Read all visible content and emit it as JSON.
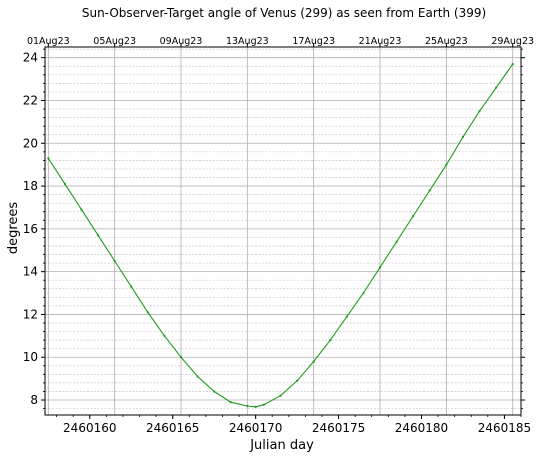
{
  "chart_data": {
    "type": "line",
    "title": "Sun-Observer-Target angle of Venus (299) as seen from Earth (399)",
    "xlabel": "Julian day",
    "ylabel": "degrees",
    "xlim": [
      2460157.3,
      2460186.0
    ],
    "ylim": [
      7.3,
      24.5
    ],
    "grid": true,
    "x_ticks": [
      2460160,
      2460165,
      2460170,
      2460175,
      2460180,
      2460185
    ],
    "x_tick_labels": [
      "2460160",
      "2460165",
      "2460170",
      "2460175",
      "2460180",
      "2460185"
    ],
    "y_ticks": [
      8,
      10,
      12,
      14,
      16,
      18,
      20,
      22,
      24
    ],
    "y_tick_labels": [
      "8",
      "10",
      "12",
      "14",
      "16",
      "18",
      "20",
      "22",
      "24"
    ],
    "top_axis": {
      "ticks": [
        2460157.5,
        2460161.5,
        2460165.5,
        2460169.5,
        2460173.5,
        2460177.5,
        2460181.5,
        2460185.5
      ],
      "labels": [
        "01Aug23",
        "05Aug23",
        "09Aug23",
        "13Aug23",
        "17Aug23",
        "21Aug23",
        "25Aug23",
        "29Aug23"
      ]
    },
    "series": [
      {
        "color": "#1f9a1f",
        "x": [
          2460157.5,
          2460158.5,
          2460159.5,
          2460160.5,
          2460161.5,
          2460162.5,
          2460163.5,
          2460164.5,
          2460165.5,
          2460166.5,
          2460167.5,
          2460168.5,
          2460169.5,
          2460170.0,
          2460170.5,
          2460171.5,
          2460172.5,
          2460173.5,
          2460174.5,
          2460175.5,
          2460176.5,
          2460177.5,
          2460178.5,
          2460179.5,
          2460180.5,
          2460181.5,
          2460182.5,
          2460183.5,
          2460184.5,
          2460185.5
        ],
        "y": [
          19.3,
          18.1,
          16.9,
          15.7,
          14.5,
          13.3,
          12.1,
          11.0,
          10.0,
          9.1,
          8.4,
          7.9,
          7.72,
          7.68,
          7.78,
          8.2,
          8.9,
          9.8,
          10.8,
          11.9,
          13.0,
          14.2,
          15.4,
          16.6,
          17.8,
          19.0,
          20.3,
          21.5,
          22.6,
          23.7
        ]
      }
    ]
  }
}
